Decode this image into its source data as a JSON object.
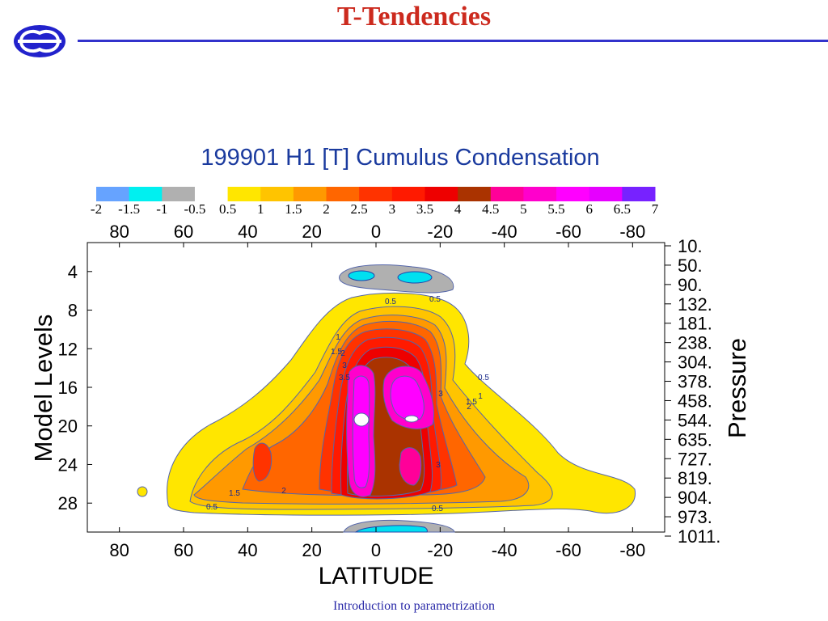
{
  "slide": {
    "title": "T-Tendencies",
    "footer": "Introduction to parametrization"
  },
  "logo": {
    "icon": "ecmwf-logo-icon",
    "color": "#2222cc"
  },
  "chart_data": {
    "type": "heatmap",
    "title": "199901 H1  [T] Cumulus Condensation",
    "xlabel": "LATITUDE",
    "ylabel_left": "Model Levels",
    "ylabel_right": "Pressure",
    "x_ticks": [
      "80",
      "60",
      "40",
      "20",
      "0",
      "-20",
      "-40",
      "-60",
      "-80"
    ],
    "x_range": [
      90,
      -90
    ],
    "y_ticks": [
      "4",
      "8",
      "12",
      "16",
      "20",
      "24",
      "28"
    ],
    "y_range": [
      1,
      31
    ],
    "pressure_labels": [
      "10.",
      "50.",
      "90.",
      "132.",
      "181.",
      "238.",
      "304.",
      "378.",
      "458.",
      "544.",
      "635.",
      "727.",
      "819.",
      "904.",
      "973.",
      "1011."
    ],
    "colorbar": {
      "labels": [
        "-2",
        "-1.5",
        "-1",
        "-0.5",
        "0.5",
        "1",
        "1.5",
        "2",
        "2.5",
        "3",
        "3.5",
        "4",
        "4.5",
        "5",
        "5.5",
        "6",
        "6.5",
        "7"
      ],
      "colors": [
        "#66a3ff",
        "#00f0f0",
        "#b0b0b0",
        "#ffffff",
        "#ffe600",
        "#ffc400",
        "#ff9900",
        "#ff6600",
        "#ff3300",
        "#ff1a00",
        "#ee0000",
        "#aa3300",
        "#ff0099",
        "#ff00cc",
        "#ff00ff",
        "#e600ff",
        "#7722ff"
      ]
    },
    "contour_labels": [
      "0.5",
      "0.5",
      "1",
      "1.5",
      "2",
      "3",
      "3.5",
      "0.5",
      "1",
      "1.5",
      "2",
      "3",
      "1.5",
      "2",
      "0.5",
      "3",
      "0.5"
    ]
  }
}
